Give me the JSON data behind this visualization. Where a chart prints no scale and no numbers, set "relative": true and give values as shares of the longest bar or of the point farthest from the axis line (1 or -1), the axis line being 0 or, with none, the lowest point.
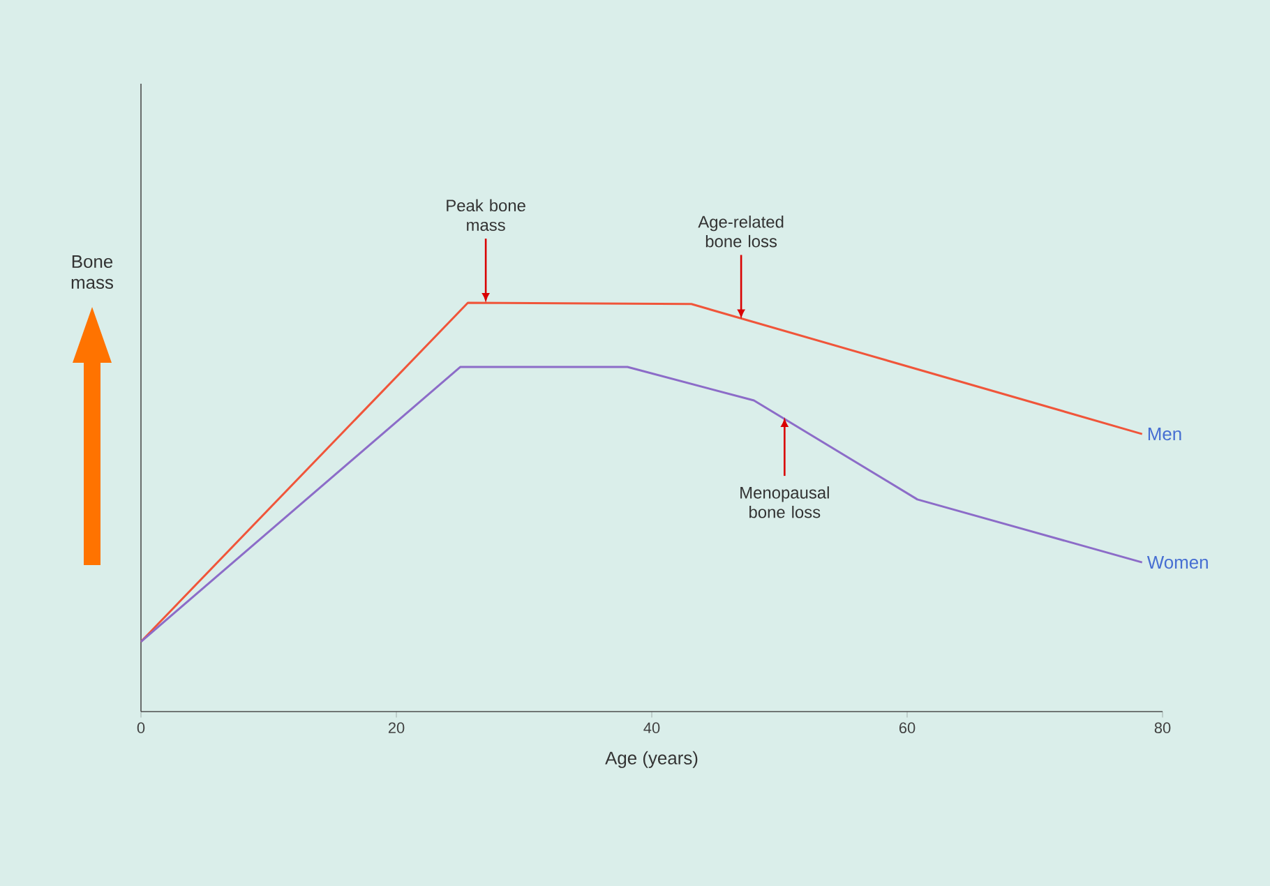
{
  "chart_data": {
    "type": "line",
    "relative": true,
    "xlabel": "Age (years)",
    "ylabel": "Bone mass",
    "xlim": [
      0,
      80
    ],
    "xticks": [
      0,
      20,
      40,
      60,
      80
    ],
    "grid": false,
    "legend": false,
    "marker": "none",
    "line_style": "solid",
    "series": [
      {
        "name": "Men",
        "color": "#f0553a",
        "x": [
          0,
          25.6,
          43.1,
          78.4
        ],
        "values": [
          0.171,
          1,
          0.997,
          0.679
        ]
      },
      {
        "name": "Women",
        "color": "#8c6cc8",
        "x": [
          0,
          25,
          38.1,
          48,
          60.8,
          78.4
        ],
        "values": [
          0.171,
          0.843,
          0.843,
          0.761,
          0.519,
          0.365
        ]
      }
    ],
    "annotations": [
      {
        "text": "Peak bone mass",
        "x": 27,
        "y": 1
      },
      {
        "text": "Age-related bone loss",
        "x": 47,
        "y": 0.96
      },
      {
        "text": "Menopausal bone loss",
        "x": 50.4,
        "y": 0.72
      }
    ]
  }
}
